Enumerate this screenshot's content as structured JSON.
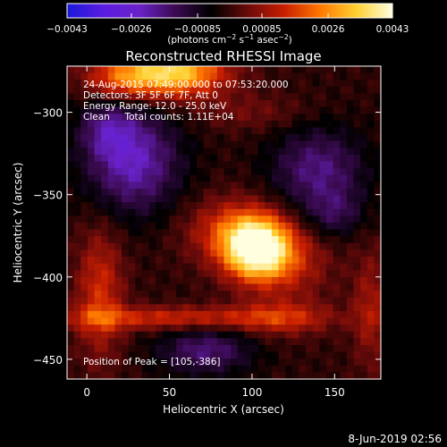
{
  "chart_data": {
    "type": "heatmap",
    "title": "Reconstructed RHESSI Image",
    "xlabel": "Heliocentric X (arcsec)",
    "ylabel": "Heliocentric Y (arcsec)",
    "xlim": [
      -12,
      178
    ],
    "ylim": [
      -462,
      -272
    ],
    "x_ticks": [
      0,
      50,
      100,
      150
    ],
    "x_tick_labels": [
      "0",
      "50",
      "100",
      "150"
    ],
    "y_ticks": [
      -300,
      -350,
      -400,
      -450
    ],
    "y_tick_labels": [
      "−300",
      "−350",
      "−400",
      "−450"
    ],
    "colorbar": {
      "min": -0.0043,
      "max": 0.0043,
      "tick_labels": [
        "−0.0043",
        "−0.0026",
        "−0.00085",
        "0.00085",
        "0.0026",
        "0.0043"
      ],
      "tick_values": [
        -0.0043,
        -0.0026,
        -0.00085,
        0.00085,
        0.0026,
        0.0043
      ],
      "label_main": "(photons cm",
      "label_exp1": "−2",
      "label_mid1": " s",
      "label_exp2": "−1",
      "label_mid2": " asec",
      "label_exp3": "−2",
      "label_end": ")"
    },
    "annotations": [
      "24-Aug-2015 07:49:00.000 to 07:53:20.000",
      "Detectors: 3F 5F 6F 7F, Att 0",
      "Energy Range: 12.0 - 25.0 keV",
      "Clean     Total counts: 1.11E+04"
    ],
    "peak_label": "Position of Peak = [105,-386]",
    "peak": [
      105,
      -386
    ],
    "blobs": [
      {
        "x": 103,
        "y": -383,
        "sx": 14,
        "sy": 13,
        "a": 0.0046
      },
      {
        "x": 88,
        "y": -372,
        "sx": 20,
        "sy": 14,
        "a": 0.0016
      },
      {
        "x": 124,
        "y": -392,
        "sx": 18,
        "sy": 16,
        "a": 0.0011
      },
      {
        "x": 52,
        "y": -276,
        "sx": 22,
        "sy": 10,
        "a": 0.0036
      },
      {
        "x": 20,
        "y": -280,
        "sx": 16,
        "sy": 9,
        "a": 0.0016
      },
      {
        "x": 50,
        "y": -425,
        "sx": 55,
        "sy": 5,
        "a": 0.0016
      },
      {
        "x": 8,
        "y": -410,
        "sx": 10,
        "sy": 28,
        "a": 0.0016
      },
      {
        "x": 118,
        "y": -425,
        "sx": 20,
        "sy": 8,
        "a": 0.0011
      },
      {
        "x": 172,
        "y": -420,
        "sx": 8,
        "sy": 25,
        "a": 0.0011
      },
      {
        "x": 100,
        "y": -300,
        "sx": 25,
        "sy": 8,
        "a": 0.0006
      },
      {
        "x": 28,
        "y": -330,
        "sx": 20,
        "sy": 22,
        "a": -0.0022
      },
      {
        "x": 12,
        "y": -310,
        "sx": 12,
        "sy": 12,
        "a": -0.0012
      },
      {
        "x": 140,
        "y": -335,
        "sx": 20,
        "sy": 18,
        "a": -0.0017
      },
      {
        "x": 72,
        "y": -445,
        "sx": 20,
        "sy": 10,
        "a": -0.0016
      },
      {
        "x": 150,
        "y": -362,
        "sx": 12,
        "sy": 10,
        "a": -0.001
      }
    ],
    "colormap": [
      "#1a1ad8",
      "#5a1ce0",
      "#6a22c8",
      "#3a0a50",
      "#000000",
      "#6a0a0a",
      "#c81e00",
      "#ff7800",
      "#ffd030",
      "#ffffe0"
    ]
  },
  "footer": {
    "date": "8-Jun-2019 02:56"
  },
  "colors": {
    "axis": "#ffffff",
    "background": "#000000"
  }
}
